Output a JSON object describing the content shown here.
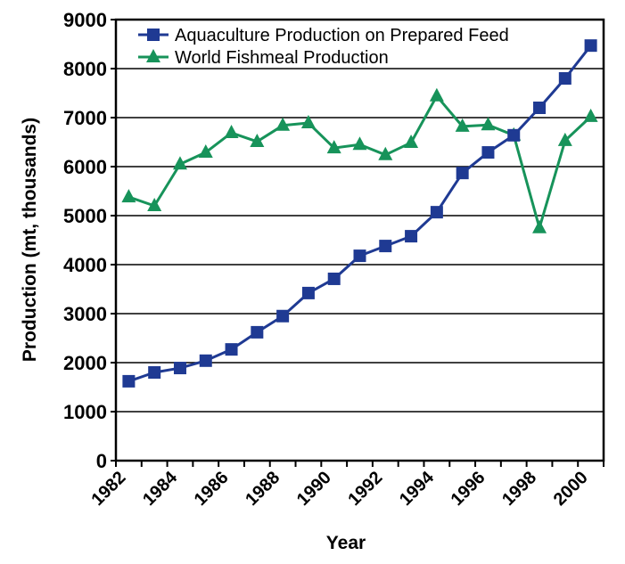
{
  "chart_data": {
    "type": "line",
    "title": "",
    "xlabel": "Year",
    "ylabel": "Production (mt, thousands)",
    "ylim": [
      0,
      9000
    ],
    "yticks": [
      "0",
      "1000",
      "2000",
      "3000",
      "4000",
      "5000",
      "6000",
      "7000",
      "8000",
      "9000"
    ],
    "x": [
      1982,
      1983,
      1984,
      1985,
      1986,
      1987,
      1988,
      1989,
      1990,
      1991,
      1992,
      1993,
      1994,
      1995,
      1996,
      1997,
      1998,
      1999,
      2000
    ],
    "xtick_labels": [
      "1982",
      "1984",
      "1986",
      "1988",
      "1990",
      "1992",
      "1994",
      "1996",
      "1998",
      "2000"
    ],
    "grid": true,
    "legend_position": "top-left",
    "series": [
      {
        "name": "Aquaculture Production on Prepared Feed",
        "marker": "square",
        "color": "#1f3a93",
        "values": [
          1620,
          1800,
          1890,
          2040,
          2270,
          2620,
          2950,
          3420,
          3710,
          4180,
          4380,
          4580,
          5070,
          5870,
          6290,
          6640,
          7200,
          7800,
          8470
        ]
      },
      {
        "name": "World Fishmeal Production",
        "marker": "triangle",
        "color": "#17935a",
        "values": [
          5380,
          5200,
          6050,
          6290,
          6690,
          6510,
          6840,
          6890,
          6380,
          6450,
          6240,
          6490,
          7440,
          6820,
          6850,
          6640,
          4750,
          6530,
          7020
        ]
      }
    ]
  }
}
